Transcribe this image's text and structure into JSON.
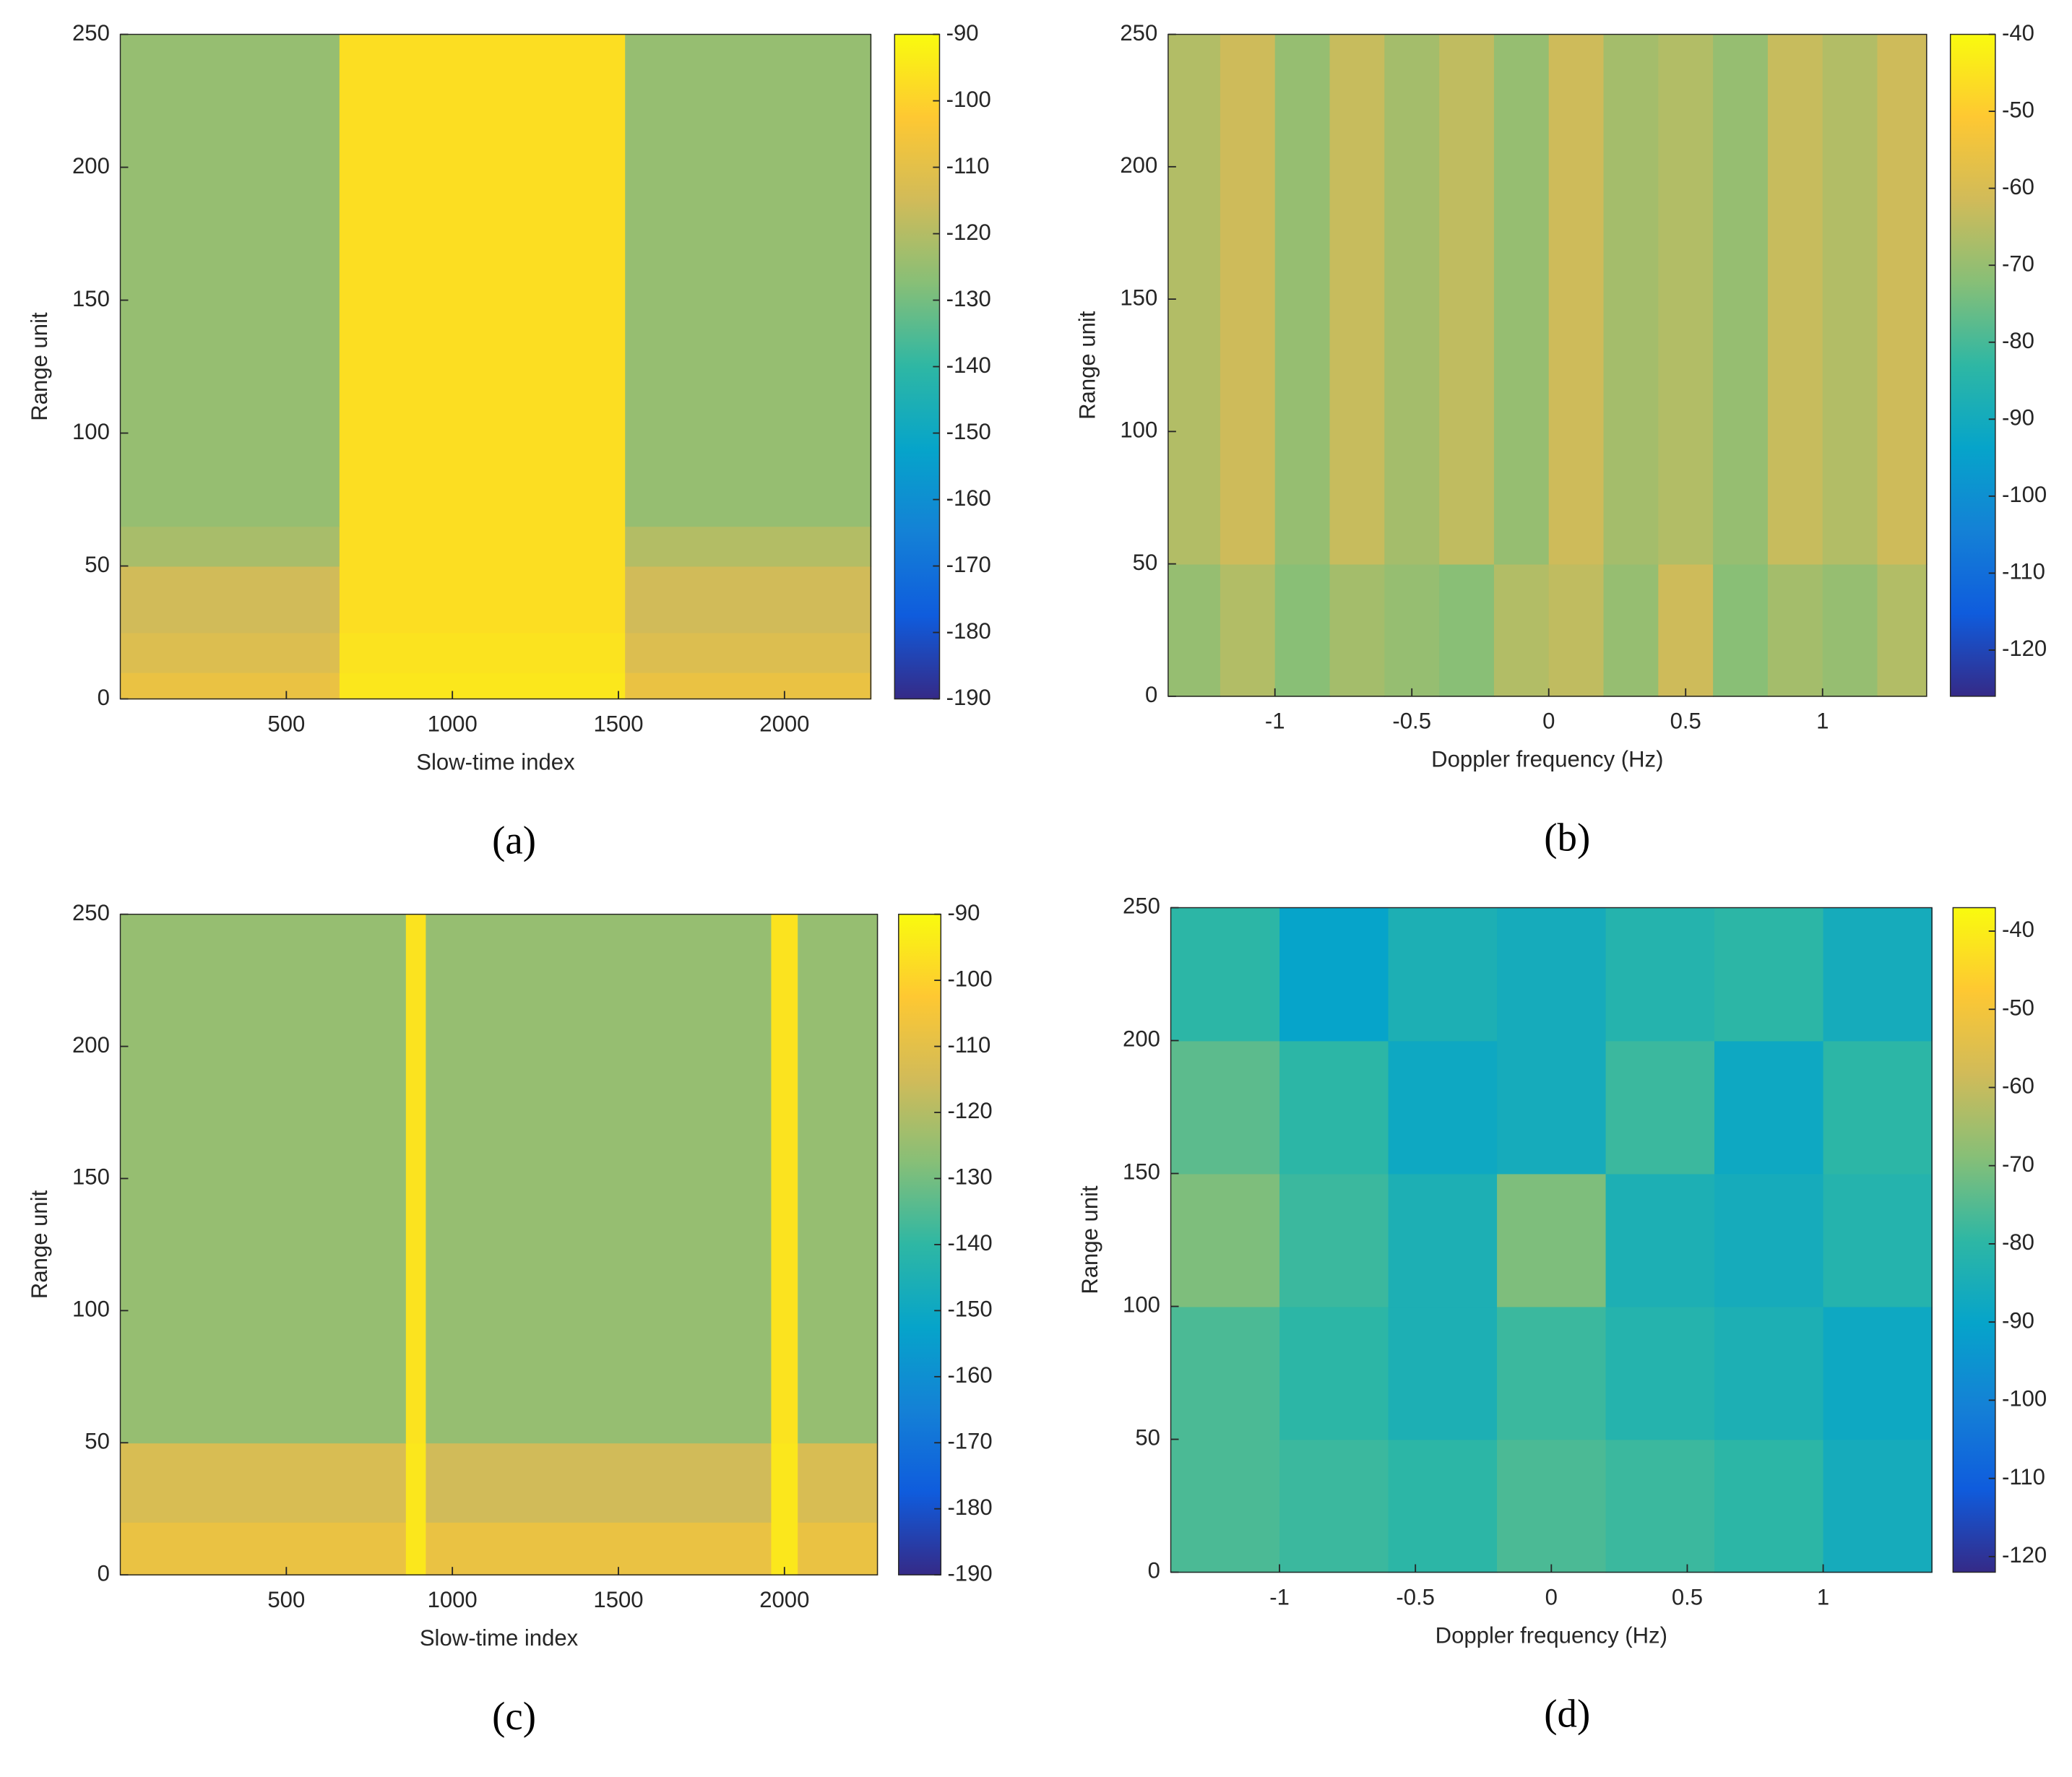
{
  "chart_data": [
    {
      "type": "heatmap",
      "label": "(a)",
      "xlabel": "Slow-time index",
      "ylabel": "Range unit",
      "colormap": "parula",
      "xlim": [
        0,
        2260
      ],
      "ylim": [
        0,
        250
      ],
      "xticks": [
        500,
        1000,
        1500,
        2000
      ],
      "yticks": [
        0,
        50,
        100,
        150,
        200,
        250
      ],
      "clim": [
        -190,
        -90
      ],
      "cticks": [
        -190,
        -180,
        -170,
        -160,
        -150,
        -140,
        -130,
        -120,
        -110,
        -100,
        -90
      ],
      "x_edges": [
        0,
        660,
        1520,
        2260
      ],
      "y_edges": [
        0,
        10,
        25,
        50,
        65,
        250
      ],
      "z": [
        [
          -108,
          -95,
          -108
        ],
        [
          -112,
          -96,
          -112
        ],
        [
          -115,
          -97,
          -115
        ],
        [
          -122,
          -97,
          -120
        ],
        [
          -125,
          -97,
          -125
        ]
      ]
    },
    {
      "type": "heatmap",
      "label": "(b)",
      "xlabel": "Doppler frequency (Hz)",
      "ylabel": "Range unit",
      "colormap": "parula",
      "xlim": [
        -1.39,
        1.38
      ],
      "ylim": [
        0,
        250
      ],
      "xticks": [
        -1,
        -0.5,
        0,
        0.5,
        1
      ],
      "yticks": [
        0,
        50,
        100,
        150,
        200,
        250
      ],
      "clim": [
        -126,
        -40
      ],
      "cticks": [
        -120,
        -110,
        -100,
        -90,
        -80,
        -70,
        -60,
        -50,
        -40
      ],
      "x_edges": [
        -1.39,
        -1.2,
        -1,
        -0.8,
        -0.6,
        -0.4,
        -0.2,
        0,
        0.2,
        0.4,
        0.6,
        0.8,
        1,
        1.2,
        1.38
      ],
      "y_edges": [
        0,
        50,
        250
      ],
      "z": [
        [
          -70,
          -66,
          -72,
          -68,
          -70,
          -72,
          -66,
          -64,
          -70,
          -62,
          -72,
          -68,
          -70,
          -66
        ],
        [
          -66,
          -62,
          -70,
          -63,
          -68,
          -64,
          -70,
          -62,
          -68,
          -66,
          -70,
          -63,
          -66,
          -62
        ]
      ]
    },
    {
      "type": "heatmap",
      "label": "(c)",
      "xlabel": "Slow-time index",
      "ylabel": "Range unit",
      "colormap": "parula",
      "xlim": [
        0,
        2280
      ],
      "ylim": [
        0,
        250
      ],
      "xticks": [
        500,
        1000,
        1500,
        2000
      ],
      "yticks": [
        0,
        50,
        100,
        150,
        200,
        250
      ],
      "clim": [
        -190,
        -90
      ],
      "cticks": [
        -190,
        -180,
        -170,
        -160,
        -150,
        -140,
        -130,
        -120,
        -110,
        -100,
        -90
      ],
      "x_edges": [
        0,
        860,
        920,
        1960,
        2040,
        2280
      ],
      "y_edges": [
        0,
        20,
        50,
        250
      ],
      "z": [
        [
          -108,
          -95,
          -108,
          -95,
          -108
        ],
        [
          -113,
          -95,
          -115,
          -95,
          -113
        ],
        [
          -125,
          -96,
          -125,
          -96,
          -125
        ]
      ]
    },
    {
      "type": "heatmap",
      "label": "(d)",
      "xlabel": "Doppler frequency (Hz)",
      "ylabel": "Range unit",
      "colormap": "parula",
      "xlim": [
        -1.4,
        1.4
      ],
      "ylim": [
        0,
        250
      ],
      "xticks": [
        -1,
        -0.5,
        0,
        0.5,
        1
      ],
      "yticks": [
        0,
        50,
        100,
        150,
        200,
        250
      ],
      "clim": [
        -122,
        -37
      ],
      "cticks": [
        -120,
        -110,
        -100,
        -90,
        -80,
        -70,
        -60,
        -50,
        -40
      ],
      "x_edges": [
        -1.4,
        -1,
        -0.6,
        -0.2,
        0.2,
        0.6,
        1,
        1.4
      ],
      "y_edges": [
        0,
        50,
        100,
        150,
        200,
        250
      ],
      "z": [
        [
          -76,
          -78,
          -80,
          -76,
          -78,
          -80,
          -86
        ],
        [
          -76,
          -80,
          -84,
          -78,
          -82,
          -84,
          -88
        ],
        [
          -70,
          -78,
          -84,
          -70,
          -84,
          -86,
          -82
        ],
        [
          -74,
          -80,
          -88,
          -86,
          -78,
          -88,
          -80
        ],
        [
          -80,
          -90,
          -84,
          -86,
          -82,
          -80,
          -86
        ]
      ]
    }
  ]
}
